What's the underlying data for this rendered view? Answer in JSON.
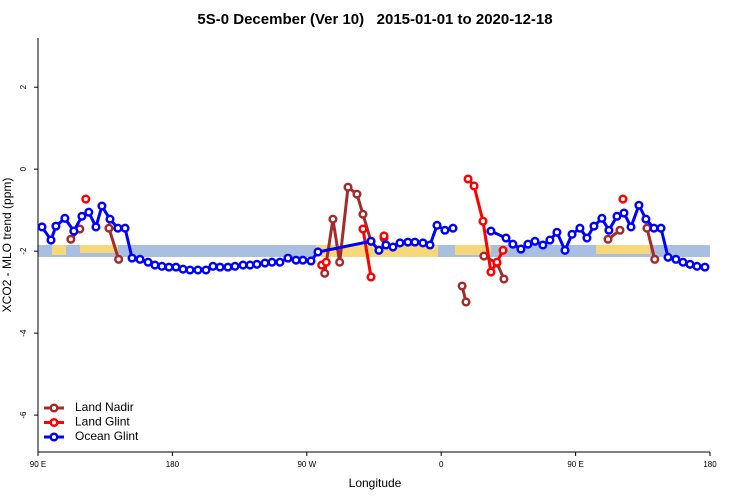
{
  "chart_data": {
    "type": "line",
    "title": "5S-0 December (Ver 10)   2015-01-01 to 2020-12-18",
    "x_label": "Longitude",
    "y_label": "XCO2 - MLO trend (ppm)",
    "xlim": [
      90,
      540
    ],
    "ylim": [
      -6.9,
      3.2
    ],
    "xticks": [
      {
        "value": 90,
        "label": "90 E"
      },
      180,
      {
        "value": 270,
        "label": "90 W"
      },
      {
        "value": 360,
        "label": "0"
      },
      {
        "value": 450,
        "label": "90 E"
      },
      {
        "value": 540,
        "label": "180"
      }
    ],
    "yticks": [
      -6,
      -4,
      -2,
      0,
      2
    ],
    "legend": "bottom-left",
    "series": [
      {
        "name": "Land Nadir",
        "color": "#a52a2a",
        "x": [
          112,
          118,
          null,
          137.5,
          144,
          null,
          282,
          287.5,
          292,
          297.6,
          303.6,
          307.6,
          313,
          null,
          321.7,
          null,
          374,
          376.6,
          null,
          388.6,
          397.3,
          402,
          null,
          471.7,
          479.7,
          null,
          497.8,
          503
        ],
        "values": [
          -1.71,
          -1.46,
          null,
          -1.44,
          -2.2,
          null,
          -2.54,
          -1.22,
          -2.27,
          -0.44,
          -0.61,
          -1.1,
          -1.76,
          null,
          -1.68,
          null,
          -2.85,
          -3.24,
          null,
          -2.12,
          -2.29,
          -2.68,
          null,
          -1.71,
          -1.49,
          null,
          -1.44,
          -2.2
        ]
      },
      {
        "name": "Land Glint",
        "color": "#ff0000",
        "x": [
          122,
          null,
          280,
          283,
          null,
          307.6,
          313,
          null,
          321.7,
          null,
          378,
          382,
          388,
          393.3,
          397.3,
          401.4,
          null,
          481.7
        ],
        "values": [
          -0.73,
          null,
          -2.34,
          -2.27,
          null,
          -1.46,
          -2.63,
          null,
          -1.63,
          null,
          -0.24,
          -0.41,
          -1.27,
          -2.51,
          -2.27,
          -1.98,
          null,
          -0.73
        ]
      },
      {
        "name": "Ocean Glint",
        "color": "#0000ff",
        "x": [
          92.7,
          98.7,
          102,
          108,
          114,
          119.4,
          124,
          128.8,
          132.8,
          138.2,
          143.5,
          148.3,
          153,
          158.3,
          163.7,
          168.3,
          173,
          177.7,
          182.4,
          187.1,
          191.8,
          197.1,
          202.5,
          207.2,
          211.9,
          217.2,
          221.9,
          227.3,
          232,
          236.6,
          242,
          246.7,
          252,
          257.4,
          262.8,
          267.4,
          272.8,
          277.5,
          313,
          318.3,
          323,
          327.7,
          332.4,
          337.7,
          342.4,
          347.8,
          352.5,
          357.2,
          362.5,
          367.9,
          null,
          393.3,
          403.4,
          408,
          413.4,
          418.1,
          422.8,
          428.1,
          432.8,
          437.5,
          442.9,
          447.6,
          452.9,
          457.6,
          462.3,
          467.6,
          472.3,
          477.7,
          482.4,
          487.1,
          492.4,
          497.1,
          502.5,
          507.2,
          511.9,
          517.2,
          521.9,
          526.6,
          531.3,
          536.6
        ],
        "values": [
          -1.41,
          -1.73,
          -1.39,
          -1.2,
          -1.51,
          -1.15,
          -1.05,
          -1.41,
          -0.9,
          -1.22,
          -1.44,
          -1.44,
          -2.17,
          -2.2,
          -2.27,
          -2.34,
          -2.37,
          -2.39,
          -2.39,
          -2.44,
          -2.46,
          -2.46,
          -2.46,
          -2.37,
          -2.39,
          -2.39,
          -2.37,
          -2.34,
          -2.34,
          -2.32,
          -2.29,
          -2.27,
          -2.27,
          -2.17,
          -2.22,
          -2.22,
          -2.24,
          -2.02,
          -1.76,
          -1.98,
          -1.85,
          -1.9,
          -1.8,
          -1.78,
          -1.78,
          -1.8,
          -1.85,
          -1.37,
          -1.49,
          -1.44,
          null,
          -1.51,
          -1.68,
          -1.83,
          -1.95,
          -1.83,
          -1.76,
          -1.85,
          -1.73,
          -1.54,
          -1.98,
          -1.59,
          -1.44,
          -1.68,
          -1.39,
          -1.2,
          -1.49,
          -1.15,
          -1.07,
          -1.41,
          -0.88,
          -1.22,
          -1.44,
          -1.44,
          -2.15,
          -2.2,
          -2.27,
          -2.32,
          -2.37,
          -2.39
        ]
      }
    ]
  }
}
